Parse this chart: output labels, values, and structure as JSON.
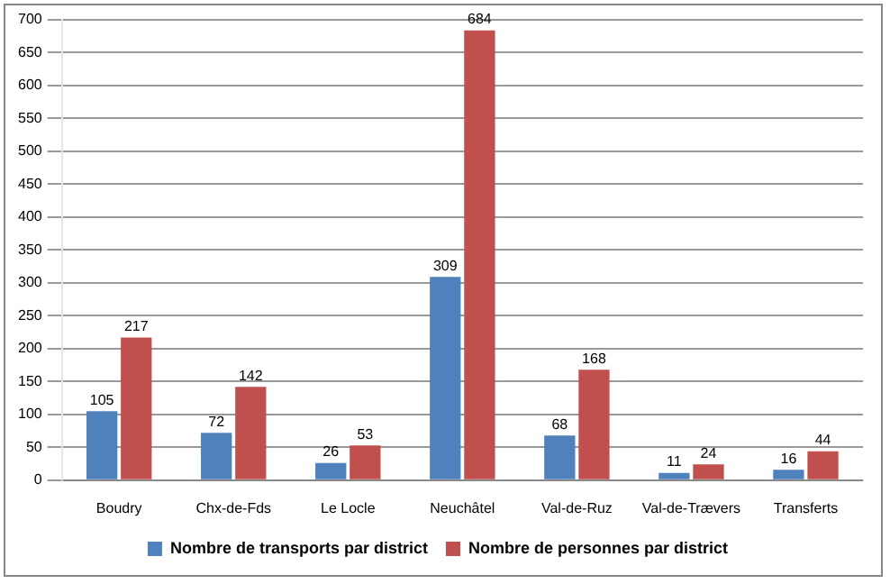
{
  "chart_data": {
    "type": "bar",
    "categories": [
      "Boudry",
      "Chx-de-Fds",
      "Le Locle",
      "Neuchâtel",
      "Val-de-Ruz",
      "Val-de-Trævers",
      "Transferts"
    ],
    "series": [
      {
        "name": "Nombre de transports par district",
        "color": "#4f81bd",
        "values": [
          105,
          72,
          26,
          309,
          68,
          11,
          16
        ]
      },
      {
        "name": "Nombre de personnes par district",
        "color": "#c0504d",
        "values": [
          217,
          142,
          53,
          684,
          168,
          24,
          44
        ]
      }
    ],
    "ylim": [
      0,
      700
    ],
    "yticks": [
      0,
      50,
      100,
      150,
      200,
      250,
      300,
      350,
      400,
      450,
      500,
      550,
      600,
      650,
      700
    ],
    "grid": "y",
    "legend": "bottom",
    "data_labels": true
  }
}
